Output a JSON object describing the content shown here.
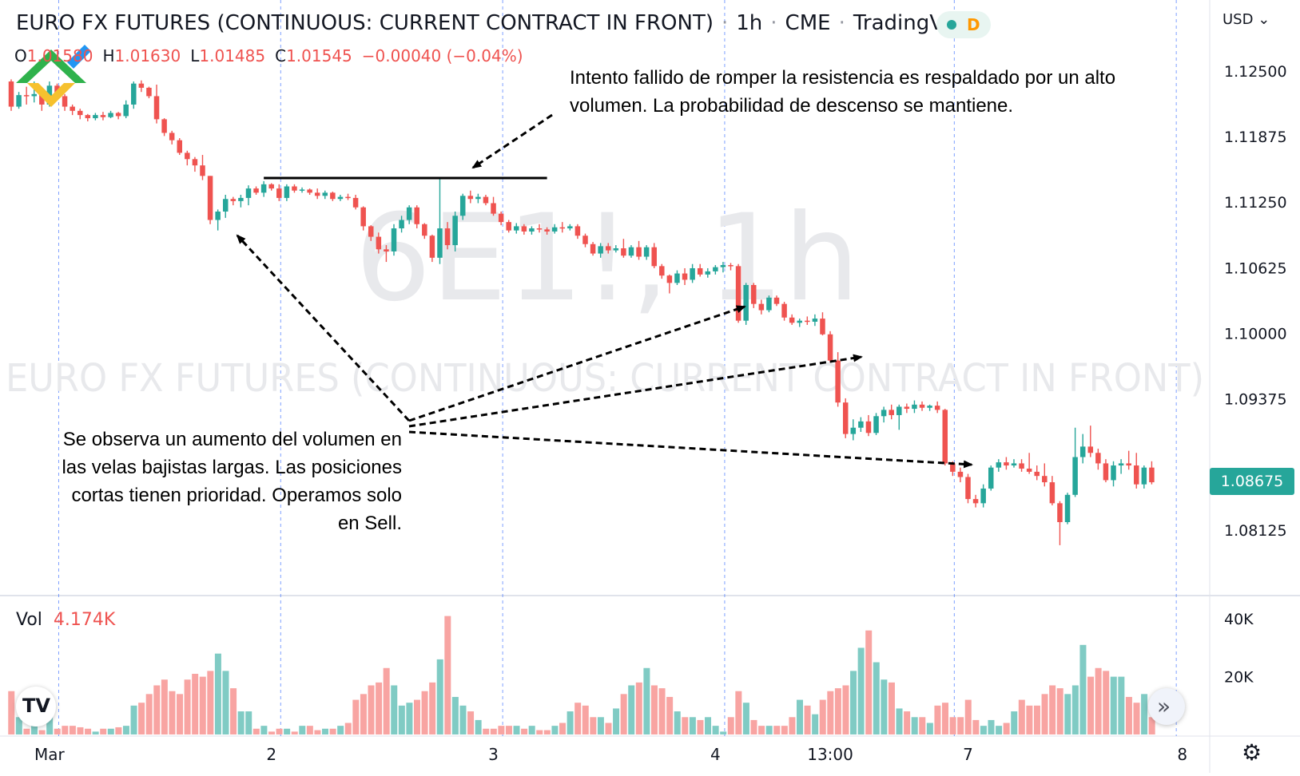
{
  "header": {
    "title": "EURO FX FUTURES (CONTINUOUS: CURRENT CONTRACT IN FRONT)",
    "interval": "1h",
    "exchange": "CME",
    "source": "TradingView",
    "status_badge": "D"
  },
  "ohlc": {
    "o_label": "O",
    "o_value": "1.01580",
    "h_label": "H",
    "h_value": "1.01630",
    "l_label": "L",
    "l_value": "1.01485",
    "c_label": "C",
    "c_value": "1.01545",
    "change": "−0.00040 (−0.04%)"
  },
  "currency": "USD",
  "watermark": {
    "symbol": "6E1!, 1h",
    "name": "EURO FX FUTURES (CONTINUOUS: CURRENT CONTRACT IN FRONT)"
  },
  "annotations": {
    "top": [
      "Intento fallido de romper la resistencia es respaldado por un alto",
      "volumen. La probabilidad de descenso se mantiene."
    ],
    "bottom": [
      "Se observa un aumento del volumen en",
      "las velas bajistas largas. Las posiciones",
      "cortas tienen prioridad. Operamos solo",
      "en Sell."
    ]
  },
  "volume_label": {
    "label": "Vol",
    "value": "4.174K"
  },
  "current_price_tag": "1.08675",
  "icons": {
    "logo": "litefinance-logo",
    "tv": "tradingview-logo",
    "scroll": "double-chevron-right-icon",
    "settings": "gear-icon"
  },
  "chart_data": {
    "type": "candlestick",
    "price_axis_labels": [
      "1.12500",
      "1.11875",
      "1.11250",
      "1.10625",
      "1.10000",
      "1.09375",
      "1.08125"
    ],
    "price_ticks": [
      1.125,
      1.11875,
      1.1125,
      1.10625,
      1.1,
      1.09375,
      1.08125
    ],
    "price_range": [
      1.0785,
      1.1272
    ],
    "volume_axis_labels": [
      "40K",
      "20K"
    ],
    "volume_ticks": [
      40000,
      20000
    ],
    "volume_range": [
      0,
      42000
    ],
    "x_labels": [
      "Mar",
      "2",
      "3",
      "4",
      "13:00",
      "7",
      "8"
    ],
    "x_label_index": [
      5,
      34,
      63,
      92,
      107,
      125,
      153
    ],
    "day_separators_index": [
      6,
      35,
      64,
      93,
      123,
      152
    ],
    "resistance_level": 1.1148,
    "resistance_from_index": 33,
    "resistance_to_index": 70,
    "colors": {
      "up": "#26a69a",
      "down": "#ef5350",
      "vol_up": "#80cbc4",
      "vol_down": "#f8a4a2",
      "grid": "#2962ff"
    },
    "ohlc": [
      [
        1.124,
        1.1242,
        1.1212,
        1.1216
      ],
      [
        1.1216,
        1.123,
        1.1214,
        1.1227
      ],
      [
        1.1227,
        1.1235,
        1.1218,
        1.1226
      ],
      [
        1.1226,
        1.124,
        1.122,
        1.1228
      ],
      [
        1.1228,
        1.1232,
        1.1212,
        1.1218
      ],
      [
        1.1218,
        1.124,
        1.1216,
        1.1236
      ],
      [
        1.1236,
        1.1238,
        1.1222,
        1.1226
      ],
      [
        1.1226,
        1.1228,
        1.1212,
        1.1216
      ],
      [
        1.1216,
        1.1218,
        1.1208,
        1.1212
      ],
      [
        1.1212,
        1.1214,
        1.1204,
        1.1208
      ],
      [
        1.1208,
        1.1209,
        1.1202,
        1.1205
      ],
      [
        1.1205,
        1.121,
        1.1203,
        1.1208
      ],
      [
        1.1208,
        1.1211,
        1.1203,
        1.1206
      ],
      [
        1.1206,
        1.1212,
        1.1205,
        1.121
      ],
      [
        1.121,
        1.1211,
        1.1204,
        1.1207
      ],
      [
        1.1207,
        1.1222,
        1.1205,
        1.1218
      ],
      [
        1.1218,
        1.124,
        1.1214,
        1.1238
      ],
      [
        1.1238,
        1.1241,
        1.123,
        1.1234
      ],
      [
        1.1234,
        1.1235,
        1.1224,
        1.1226
      ],
      [
        1.1226,
        1.1237,
        1.12,
        1.1204
      ],
      [
        1.1204,
        1.1205,
        1.1188,
        1.1191
      ],
      [
        1.1191,
        1.1193,
        1.118,
        1.1184
      ],
      [
        1.1184,
        1.1186,
        1.117,
        1.1172
      ],
      [
        1.1172,
        1.1174,
        1.116,
        1.1166
      ],
      [
        1.1166,
        1.1168,
        1.1154,
        1.116
      ],
      [
        1.116,
        1.117,
        1.1146,
        1.115
      ],
      [
        1.115,
        1.115,
        1.1104,
        1.1108
      ],
      [
        1.1108,
        1.1118,
        1.1098,
        1.1116
      ],
      [
        1.1116,
        1.1132,
        1.111,
        1.1128
      ],
      [
        1.1128,
        1.113,
        1.1122,
        1.1126
      ],
      [
        1.1126,
        1.1132,
        1.112,
        1.1129
      ],
      [
        1.1129,
        1.1141,
        1.1122,
        1.1138
      ],
      [
        1.1138,
        1.114,
        1.1132,
        1.1134
      ],
      [
        1.1134,
        1.1145,
        1.113,
        1.1142
      ],
      [
        1.1142,
        1.1143,
        1.1136,
        1.1138
      ],
      [
        1.1138,
        1.1142,
        1.1126,
        1.1129
      ],
      [
        1.1129,
        1.1142,
        1.1126,
        1.114
      ],
      [
        1.114,
        1.1142,
        1.1134,
        1.1136
      ],
      [
        1.1136,
        1.1139,
        1.1134,
        1.1137
      ],
      [
        1.1137,
        1.1138,
        1.1132,
        1.1134
      ],
      [
        1.1134,
        1.1138,
        1.1128,
        1.1131
      ],
      [
        1.1131,
        1.1136,
        1.1128,
        1.1134
      ],
      [
        1.1134,
        1.1135,
        1.1126,
        1.1128
      ],
      [
        1.1128,
        1.1132,
        1.1126,
        1.113
      ],
      [
        1.113,
        1.1133,
        1.1127,
        1.1129
      ],
      [
        1.1129,
        1.1132,
        1.1118,
        1.112
      ],
      [
        1.112,
        1.1121,
        1.1098,
        1.1102
      ],
      [
        1.1102,
        1.1103,
        1.1088,
        1.1092
      ],
      [
        1.1092,
        1.1096,
        1.1076,
        1.108
      ],
      [
        1.108,
        1.1084,
        1.1068,
        1.1078
      ],
      [
        1.1078,
        1.1104,
        1.1074,
        1.11
      ],
      [
        1.11,
        1.1112,
        1.1096,
        1.1108
      ],
      [
        1.1108,
        1.1122,
        1.1104,
        1.112
      ],
      [
        1.112,
        1.1122,
        1.11,
        1.1104
      ],
      [
        1.1104,
        1.1105,
        1.109,
        1.1093
      ],
      [
        1.1093,
        1.1094,
        1.1068,
        1.1072
      ],
      [
        1.1072,
        1.1148,
        1.1066,
        1.11
      ],
      [
        1.11,
        1.1106,
        1.108,
        1.1084
      ],
      [
        1.1084,
        1.1116,
        1.1078,
        1.1112
      ],
      [
        1.1112,
        1.1133,
        1.1108,
        1.1131
      ],
      [
        1.1131,
        1.1136,
        1.1124,
        1.1128
      ],
      [
        1.1128,
        1.1133,
        1.1124,
        1.113
      ],
      [
        1.113,
        1.1132,
        1.1122,
        1.1124
      ],
      [
        1.1124,
        1.113,
        1.1112,
        1.1114
      ],
      [
        1.1114,
        1.1116,
        1.1103,
        1.1106
      ],
      [
        1.1106,
        1.1108,
        1.1096,
        1.1098
      ],
      [
        1.1098,
        1.1105,
        1.1095,
        1.1102
      ],
      [
        1.1102,
        1.1104,
        1.1094,
        1.1097
      ],
      [
        1.1097,
        1.1102,
        1.1094,
        1.11
      ],
      [
        1.11,
        1.1104,
        1.1096,
        1.1099
      ],
      [
        1.1099,
        1.1101,
        1.1094,
        1.1097
      ],
      [
        1.1097,
        1.1104,
        1.1095,
        1.1101
      ],
      [
        1.1101,
        1.1106,
        1.1096,
        1.11
      ],
      [
        1.11,
        1.1104,
        1.1098,
        1.1102
      ],
      [
        1.1102,
        1.1104,
        1.109,
        1.1093
      ],
      [
        1.1093,
        1.1095,
        1.1082,
        1.1085
      ],
      [
        1.1085,
        1.1087,
        1.1074,
        1.1076
      ],
      [
        1.1076,
        1.1086,
        1.1072,
        1.1083
      ],
      [
        1.1083,
        1.1086,
        1.1076,
        1.1079
      ],
      [
        1.1079,
        1.1084,
        1.1077,
        1.1081
      ],
      [
        1.1081,
        1.109,
        1.1072,
        1.1074
      ],
      [
        1.1074,
        1.1084,
        1.1072,
        1.1082
      ],
      [
        1.1082,
        1.1088,
        1.107,
        1.1073
      ],
      [
        1.1073,
        1.1084,
        1.107,
        1.1082
      ],
      [
        1.1082,
        1.1086,
        1.1062,
        1.1064
      ],
      [
        1.1064,
        1.1066,
        1.1052,
        1.1055
      ],
      [
        1.1055,
        1.1056,
        1.1038,
        1.1048
      ],
      [
        1.1048,
        1.106,
        1.1046,
        1.1057
      ],
      [
        1.1057,
        1.1062,
        1.1046,
        1.1051
      ],
      [
        1.1051,
        1.1066,
        1.1048,
        1.1062
      ],
      [
        1.1062,
        1.1066,
        1.1054,
        1.1056
      ],
      [
        1.1056,
        1.1062,
        1.1053,
        1.1059
      ],
      [
        1.1059,
        1.1065,
        1.1056,
        1.1063
      ],
      [
        1.1063,
        1.1068,
        1.1058,
        1.1065
      ],
      [
        1.1065,
        1.1067,
        1.106,
        1.1064
      ],
      [
        1.1064,
        1.1066,
        1.101,
        1.1012
      ],
      [
        1.1012,
        1.1048,
        1.1008,
        1.1046
      ],
      [
        1.1046,
        1.1048,
        1.1024,
        1.1028
      ],
      [
        1.1028,
        1.1032,
        1.1018,
        1.1022
      ],
      [
        1.1022,
        1.1036,
        1.102,
        1.1034
      ],
      [
        1.1034,
        1.1036,
        1.1026,
        1.1028
      ],
      [
        1.1028,
        1.103,
        1.1012,
        1.1015
      ],
      [
        1.1015,
        1.1018,
        1.1008,
        1.101
      ],
      [
        1.101,
        1.1014,
        1.1006,
        1.1012
      ],
      [
        1.1012,
        1.1016,
        1.1008,
        1.1011
      ],
      [
        1.1011,
        1.1018,
        1.1007,
        1.1014
      ],
      [
        1.1014,
        1.102,
        1.0998,
        1.0999
      ],
      [
        1.0999,
        1.1002,
        1.0972,
        1.0974
      ],
      [
        1.0974,
        1.0982,
        1.093,
        1.0934
      ],
      [
        1.0934,
        1.0938,
        1.09,
        1.0904
      ],
      [
        1.0904,
        1.0918,
        1.0898,
        1.091
      ],
      [
        1.091,
        1.092,
        1.0906,
        1.0916
      ],
      [
        1.0916,
        1.0922,
        1.0902,
        1.0905
      ],
      [
        1.0905,
        1.0924,
        1.0903,
        1.0921
      ],
      [
        1.0921,
        1.093,
        1.0915,
        1.0927
      ],
      [
        1.0927,
        1.0932,
        1.0918,
        1.0922
      ],
      [
        1.0922,
        1.0932,
        1.0908,
        1.093
      ],
      [
        1.093,
        1.0933,
        1.0924,
        1.0928
      ],
      [
        1.0928,
        1.0936,
        1.0924,
        1.0932
      ],
      [
        1.0932,
        1.0935,
        1.0926,
        1.0929
      ],
      [
        1.0929,
        1.0932,
        1.0926,
        1.0931
      ],
      [
        1.0931,
        1.0935,
        1.0924,
        1.0927
      ],
      [
        1.0927,
        1.0928,
        1.0874,
        1.0876
      ],
      [
        1.0876,
        1.0878,
        1.0864,
        1.0868
      ],
      [
        1.0868,
        1.0872,
        1.0858,
        1.0863
      ],
      [
        1.0863,
        1.0866,
        1.0838,
        1.0842
      ],
      [
        1.0842,
        1.0846,
        1.0834,
        1.0838
      ],
      [
        1.0838,
        1.0856,
        1.0834,
        1.0852
      ],
      [
        1.0852,
        1.0874,
        1.085,
        1.0872
      ],
      [
        1.0872,
        1.088,
        1.0868,
        1.0877
      ],
      [
        1.0877,
        1.0882,
        1.087,
        1.0874
      ],
      [
        1.0874,
        1.088,
        1.0872,
        1.0876
      ],
      [
        1.0876,
        1.088,
        1.0868,
        1.0871
      ],
      [
        1.0871,
        1.0886,
        1.0866,
        1.0868
      ],
      [
        1.0868,
        1.0874,
        1.086,
        1.0864
      ],
      [
        1.0864,
        1.0876,
        1.0854,
        1.0858
      ],
      [
        1.0858,
        1.0864,
        1.0836,
        1.0838
      ],
      [
        1.0838,
        1.084,
        1.0798,
        1.082
      ],
      [
        1.082,
        1.0848,
        1.0818,
        1.0846
      ],
      [
        1.0846,
        1.091,
        1.0844,
        1.0882
      ],
      [
        1.0882,
        1.0904,
        1.0876,
        1.0892
      ],
      [
        1.0892,
        1.0912,
        1.0882,
        1.0886
      ],
      [
        1.0886,
        1.089,
        1.087,
        1.0876
      ],
      [
        1.0876,
        1.088,
        1.0858,
        1.086
      ],
      [
        1.086,
        1.0878,
        1.0854,
        1.0874
      ],
      [
        1.0874,
        1.088,
        1.0866,
        1.0876
      ],
      [
        1.0876,
        1.0888,
        1.087,
        1.0874
      ],
      [
        1.0874,
        1.0886,
        1.0852,
        1.0856
      ],
      [
        1.0856,
        1.0874,
        1.0852,
        1.0872
      ],
      [
        1.0872,
        1.0878,
        1.0856,
        1.0858
      ]
    ],
    "volume": [
      15000,
      6000,
      2000,
      4000,
      1500,
      8000,
      2000,
      3000,
      3000,
      2500,
      2000,
      1000,
      2000,
      2000,
      2500,
      3000,
      10000,
      11000,
      14000,
      17000,
      19000,
      15000,
      14000,
      19000,
      21000,
      20000,
      22000,
      28000,
      22000,
      16000,
      8000,
      8000,
      2000,
      3000,
      1000,
      2000,
      2000,
      1000,
      3000,
      3000,
      1500,
      2000,
      2000,
      3000,
      4000,
      12000,
      14000,
      17000,
      18000,
      23000,
      17000,
      10000,
      11000,
      12000,
      15000,
      18000,
      26000,
      41000,
      13000,
      10000,
      8000,
      5000,
      2000,
      2000,
      3000,
      3000,
      3000,
      2000,
      3000,
      1500,
      1500,
      3000,
      4000,
      8000,
      11000,
      10000,
      6000,
      6000,
      4000,
      9000,
      14000,
      17000,
      18000,
      23000,
      17000,
      16000,
      13000,
      8000,
      6000,
      6000,
      5000,
      6000,
      3000,
      1000,
      6000,
      15000,
      11000,
      5000,
      3000,
      3000,
      3000,
      3000,
      6000,
      12000,
      10000,
      7000,
      12000,
      15000,
      16000,
      17000,
      22000,
      30000,
      36000,
      25000,
      19000,
      18000,
      9000,
      8000,
      6000,
      6000,
      4000,
      10000,
      11000,
      6000,
      6000,
      12000,
      5000,
      3000,
      5000,
      3000,
      4000,
      8000,
      12000,
      10000,
      10000,
      14000,
      17000,
      16000,
      14000,
      17000,
      31000,
      20000,
      23000,
      22000,
      20000,
      20000,
      13000,
      11000,
      14000,
      6000
    ]
  }
}
